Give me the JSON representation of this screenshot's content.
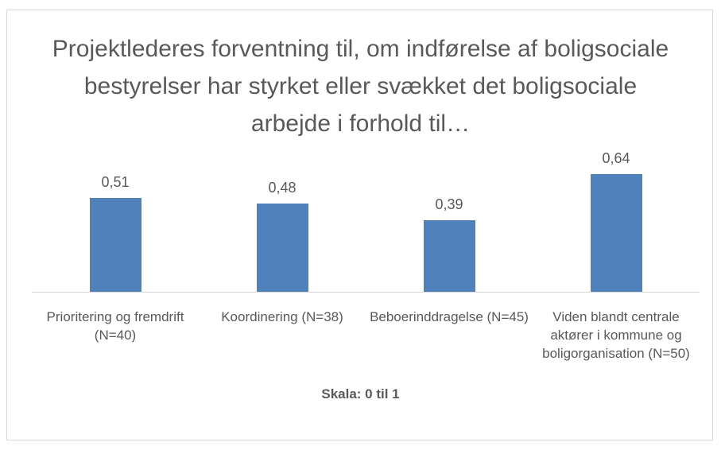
{
  "chart_data": {
    "type": "bar",
    "title": "Projektlederes forventning til, om indførelse af boligsociale bestyrelser har styrket eller svækket det boligsociale arbejde i forhold til…",
    "categories": [
      "Prioritering og fremdrift (N=40)",
      "Koordinering (N=38)",
      "Beboerinddragelse (N=45)",
      "Viden blandt centrale aktører i kommune og boligorganisation (N=50)"
    ],
    "values": [
      0.51,
      0.48,
      0.39,
      0.64
    ],
    "value_labels": [
      "0,51",
      "0,48",
      "0,39",
      "0,64"
    ],
    "color": "#4f81bd",
    "x_label": "Skala: 0 til 1"
  }
}
